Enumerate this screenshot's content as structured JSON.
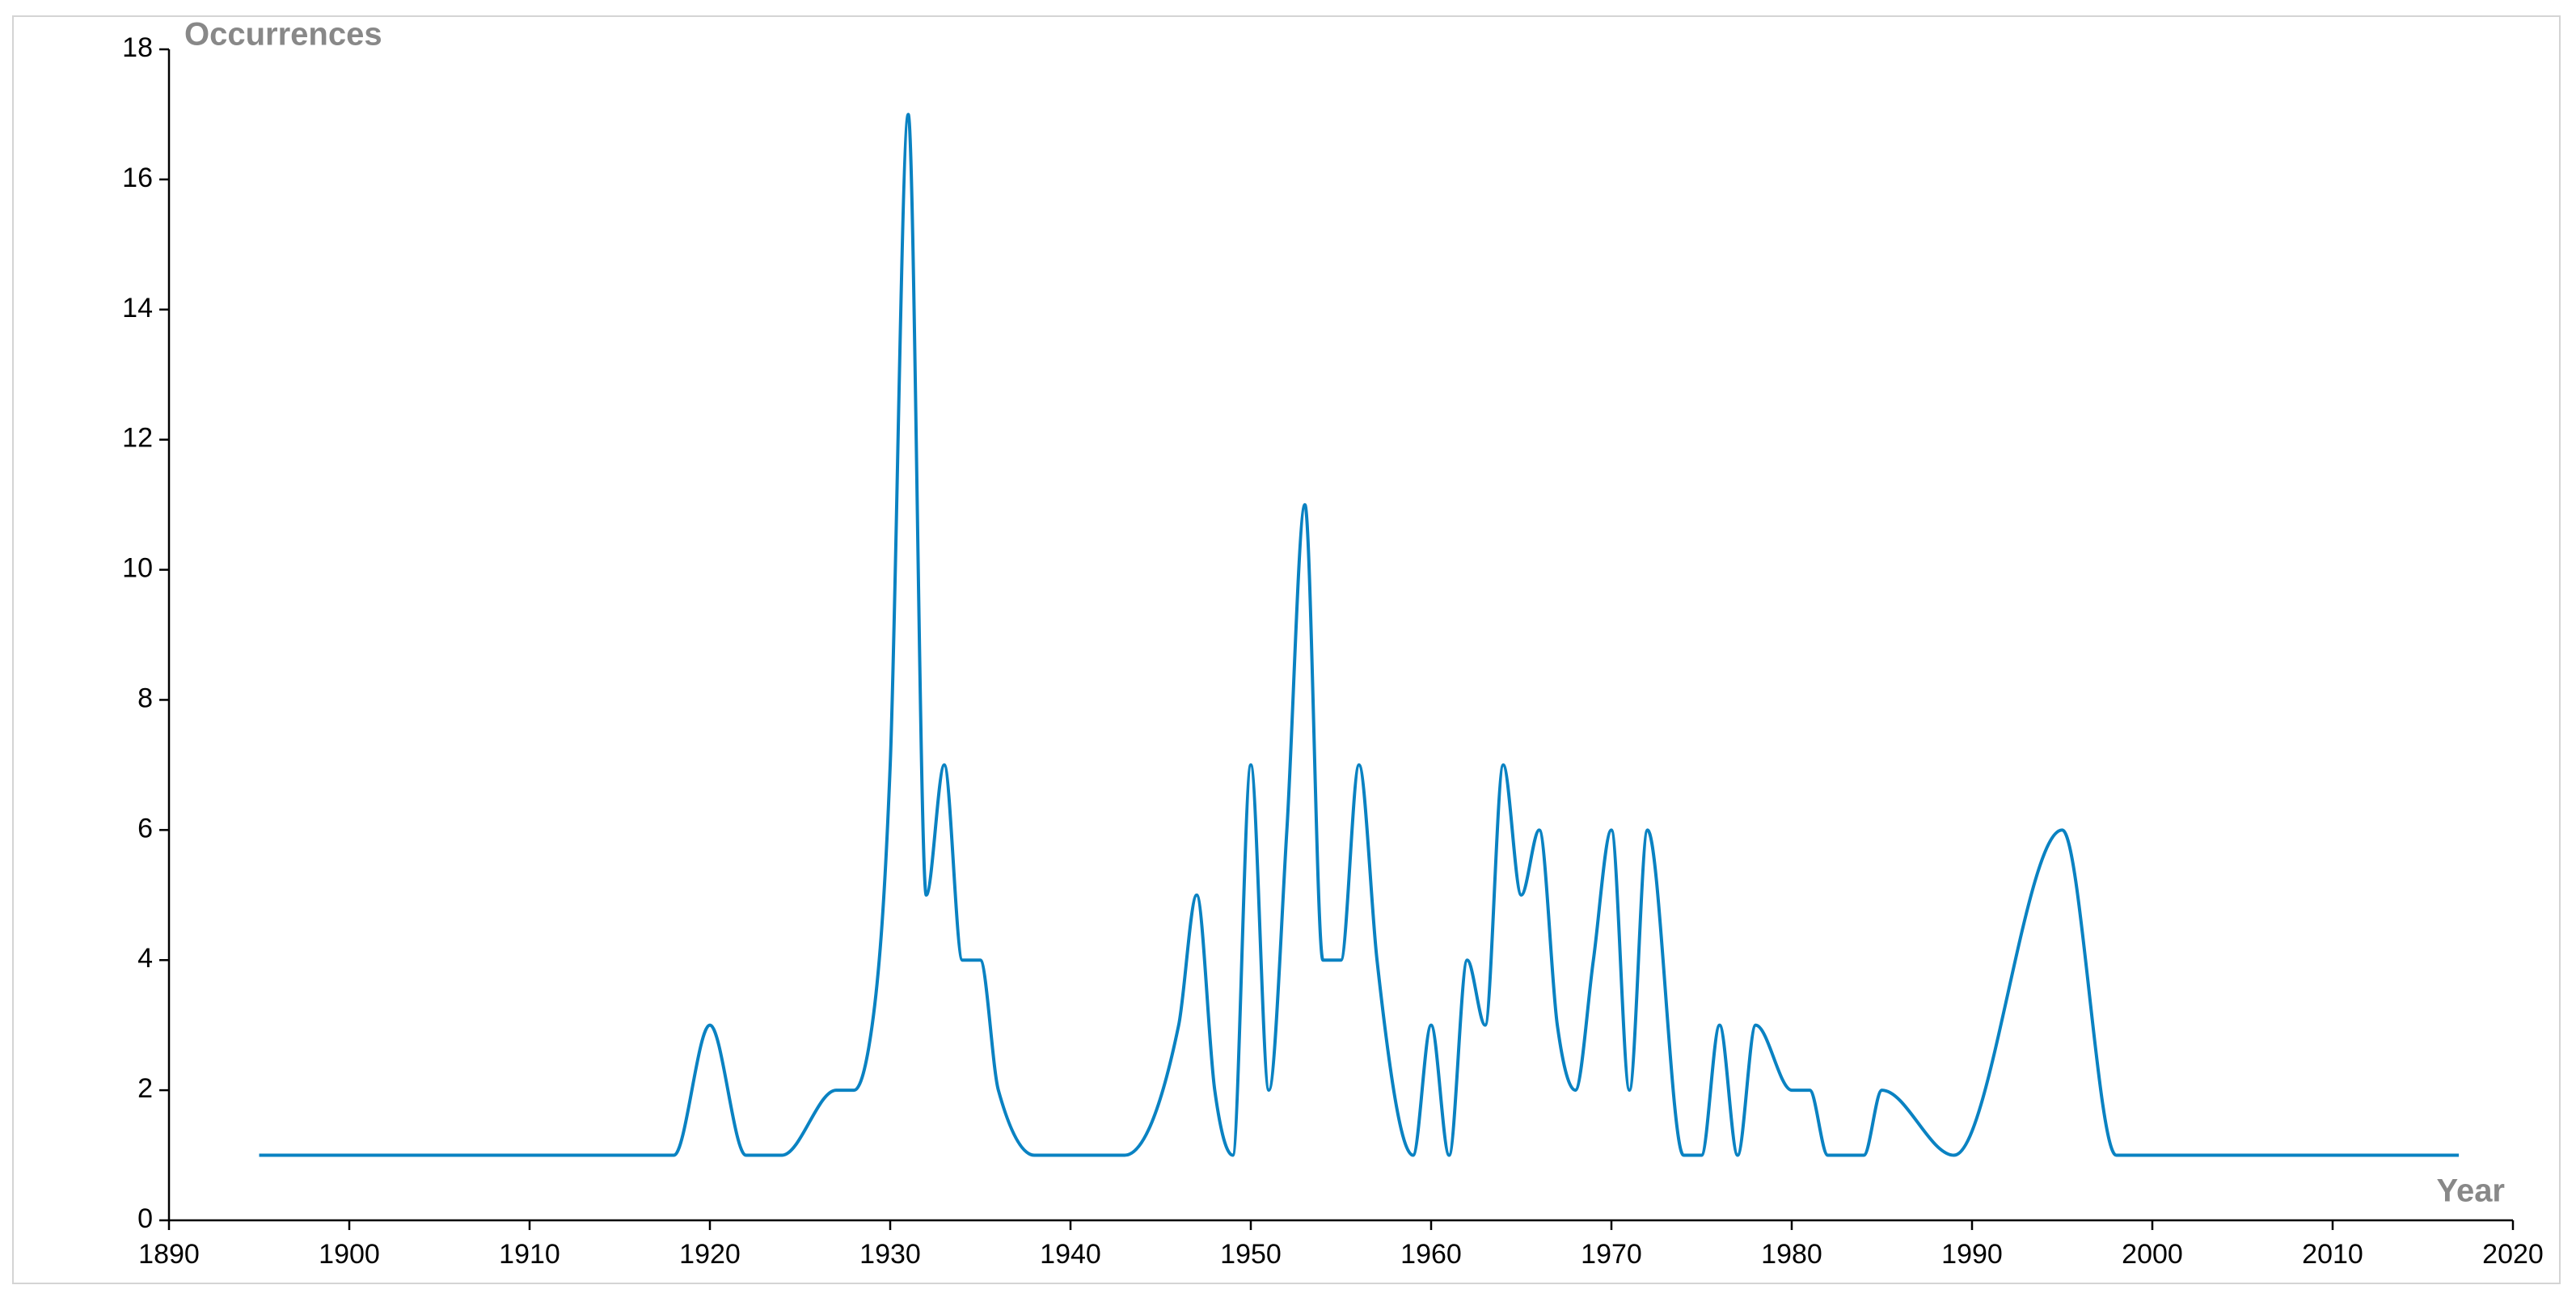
{
  "chart_data": {
    "type": "line",
    "x_label": "Year",
    "y_label": "Occurrences",
    "color": "#0a82c2",
    "x": [
      1895,
      1918,
      1920,
      1922,
      1924,
      1927,
      1928,
      1929,
      1930,
      1931,
      1932,
      1933,
      1934,
      1935,
      1936,
      1938,
      1943,
      1946,
      1947,
      1948,
      1949,
      1950,
      1951,
      1952,
      1953,
      1954,
      1955,
      1956,
      1957,
      1959,
      1960,
      1961,
      1962,
      1963,
      1964,
      1965,
      1966,
      1967,
      1968,
      1969,
      1970,
      1971,
      1972,
      1974,
      1975,
      1976,
      1977,
      1978,
      1980,
      1981,
      1982,
      1984,
      1985,
      1989,
      1995,
      1998,
      2017
    ],
    "values": [
      1,
      1,
      3,
      1,
      1,
      2,
      2,
      3,
      7,
      17,
      5,
      7,
      4,
      4,
      2,
      1,
      1,
      3,
      5,
      2,
      1,
      7,
      2,
      6,
      11,
      4,
      4,
      7,
      4,
      1,
      3,
      1,
      4,
      3,
      7,
      5,
      6,
      3,
      2,
      4,
      6,
      2,
      6,
      1,
      1,
      3,
      1,
      3,
      2,
      2,
      1,
      1,
      2,
      1,
      6,
      1,
      1
    ],
    "xlim": [
      1890,
      2020
    ],
    "xticks": [
      1890,
      1900,
      1910,
      1920,
      1930,
      1940,
      1950,
      1960,
      1970,
      1980,
      1990,
      2000,
      2010,
      2020
    ],
    "ylim": [
      0,
      18
    ],
    "yticks": [
      0,
      2,
      4,
      6,
      8,
      10,
      12,
      14,
      16,
      18
    ]
  }
}
